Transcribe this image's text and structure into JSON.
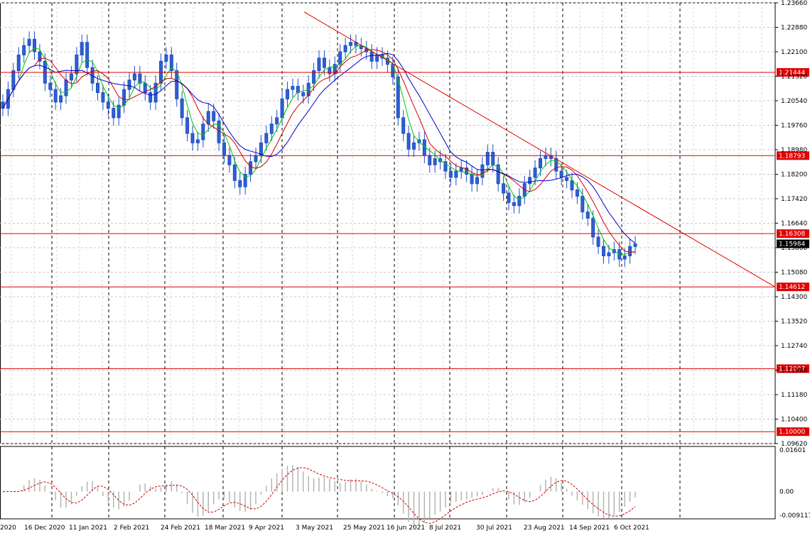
{
  "chart_data": [
    {
      "type": "candlestick",
      "title": "",
      "price_axis_ticks": [
        "1.23660",
        "1.22880",
        "1.22100",
        "1.21320",
        "1.20540",
        "1.19760",
        "1.18980",
        "1.18200",
        "1.17420",
        "1.16640",
        "1.15860",
        "1.15080",
        "1.14300",
        "1.13520",
        "1.12740",
        "1.11960",
        "1.11180",
        "1.10400",
        "1.09620"
      ],
      "date_axis_ticks": [
        "2020",
        "16 Dec 2020",
        "11 Jan 2021",
        "2 Feb 2021",
        "24 Feb 2021",
        "18 Mar 2021",
        "9 Apr 2021",
        "3 May 2021",
        "25 May 2021",
        "16 Jun 2021",
        "8 Jul 2021",
        "30 Jul 2021",
        "23 Aug 2021",
        "14 Sep 2021",
        "6 Oct 2021"
      ],
      "ylim": [
        1.0962,
        1.2366
      ],
      "current_price": "1.15984",
      "horizontal_levels": [
        {
          "label": "1.21444",
          "value": 1.21444
        },
        {
          "label": "1.18793",
          "value": 1.18793
        },
        {
          "label": "1.16308",
          "value": 1.16308
        },
        {
          "label": "1.14612",
          "value": 1.14612
        },
        {
          "label": "1.12007",
          "value": 1.12007
        },
        {
          "label": "1.10000",
          "value": 1.1
        }
      ],
      "trendline": {
        "from": [
          "3 May 2021",
          1.2337
        ],
        "to": [
          "after 6 Oct 2021",
          1.1461
        ]
      },
      "series": [
        {
          "name": "",
          "kind": "close",
          "values": [
            1.203,
            1.209,
            1.215,
            1.22,
            1.223,
            1.225,
            1.221,
            1.218,
            1.211,
            1.209,
            1.205,
            1.207,
            1.212,
            1.214,
            1.22,
            1.224,
            1.216,
            1.211,
            1.208,
            1.205,
            1.203,
            1.2,
            1.204,
            1.209,
            1.212,
            1.214,
            1.211,
            1.208,
            1.205,
            1.211,
            1.218,
            1.22,
            1.215,
            1.206,
            1.2,
            1.195,
            1.192,
            1.193,
            1.198,
            1.202,
            1.199,
            1.192,
            1.188,
            1.185,
            1.18,
            1.178,
            1.182,
            1.186,
            1.188,
            1.192,
            1.195,
            1.198,
            1.2,
            1.206,
            1.209,
            1.21,
            1.208,
            1.207,
            1.211,
            1.215,
            1.219,
            1.216,
            1.214,
            1.217,
            1.221,
            1.223,
            1.224,
            1.223,
            1.222,
            1.221,
            1.218,
            1.22,
            1.219,
            1.217,
            1.213,
            1.2,
            1.195,
            1.19,
            1.192,
            1.193,
            1.188,
            1.185,
            1.187,
            1.186,
            1.183,
            1.181,
            1.183,
            1.184,
            1.182,
            1.179,
            1.181,
            1.185,
            1.189,
            1.185,
            1.179,
            1.176,
            1.173,
            1.172,
            1.175,
            1.179,
            1.181,
            1.184,
            1.187,
            1.188,
            1.187,
            1.183,
            1.181,
            1.18,
            1.177,
            1.175,
            1.17,
            1.168,
            1.162,
            1.159,
            1.156,
            1.157,
            1.158,
            1.155,
            1.156,
            1.159,
            1.1598
          ]
        },
        {
          "name": "",
          "kind": "ma_fast",
          "color": "#00c800"
        },
        {
          "name": "",
          "kind": "ma_mid",
          "color": "#d00000"
        },
        {
          "name": "",
          "kind": "ma_slow",
          "color": "#0000c8"
        }
      ]
    },
    {
      "type": "histogram",
      "title": "",
      "axis_ticks": [
        "0.01601",
        "0.00",
        "-0.009117"
      ],
      "ylim": [
        -0.0105,
        0.0174
      ]
    }
  ]
}
